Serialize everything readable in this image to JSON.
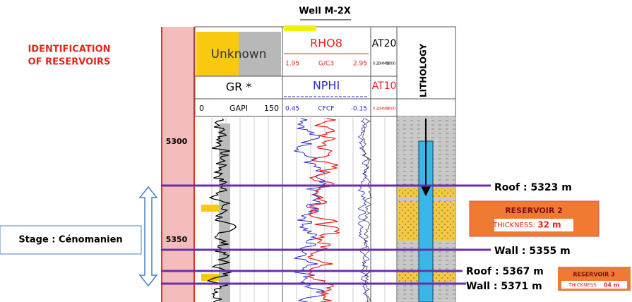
{
  "title": "Well M-2X",
  "heading": [
    "IDENTIFICATION",
    "OF RESERVOIRS"
  ],
  "tracks": {
    "gr": {
      "legend": "Unknown",
      "name": "GR *",
      "min": "0",
      "unit": "GAPI",
      "max": "150"
    },
    "rho": {
      "name": "RHO8",
      "min": "1.95",
      "unit": "G/C3",
      "max": "2.95"
    },
    "nphi": {
      "name": "NPHI",
      "min": "0.45",
      "unit": "CFCF",
      "max": "-0.15"
    },
    "at20": {
      "name": "AT20",
      "min": "0.2",
      "unit": "OHMM",
      "max": "2000"
    },
    "at10": {
      "name": "AT10",
      "min": "0.2",
      "unit": "OHMM",
      "max": "2000"
    },
    "lithology": "LITHOLOGY"
  },
  "depths": [
    "5300",
    "5350"
  ],
  "stage": "Stage : Cénomanien",
  "markers": [
    "Roof : 5323 m",
    "Wall : 5355 m",
    "Roof : 5367 m",
    "Wall : 5371 m"
  ],
  "reservoirs": [
    {
      "name": "RESERVOIR 2",
      "thickness_label": "THICKNESS:",
      "thickness": "32 m"
    },
    {
      "name": "RESERVOIR 3",
      "thickness_label": "THICKNESS:",
      "thickness": "04 m"
    }
  ]
}
